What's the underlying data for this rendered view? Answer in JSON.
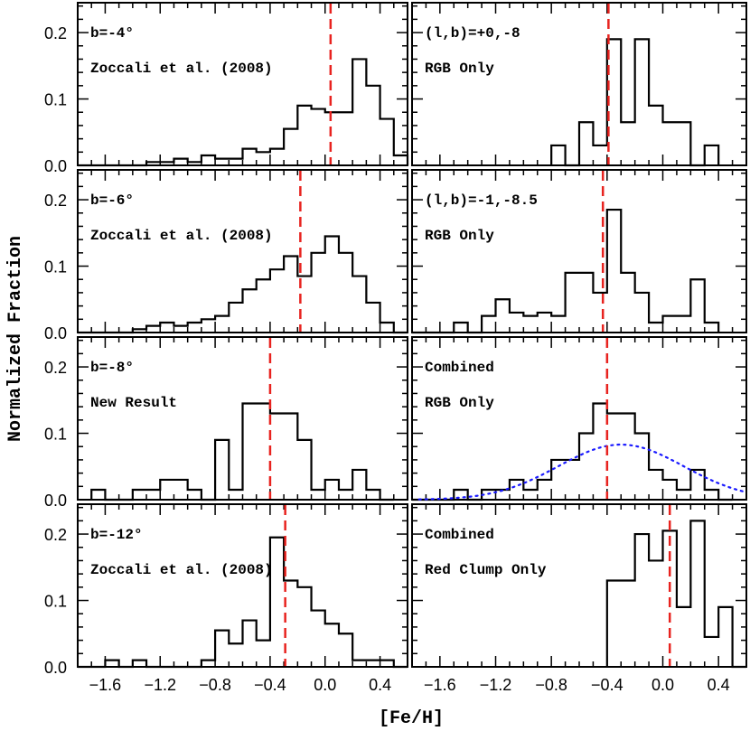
{
  "figure": {
    "ylabel": "Normalized Fraction",
    "xlabel": "[Fe/H]",
    "x_ticks": [
      "-1.6",
      "-1.2",
      "-0.8",
      "-0.4",
      "0.0",
      "0.4"
    ],
    "y_ticks": [
      "0.0",
      "0.1",
      "0.2"
    ],
    "hist_color": "#000000",
    "marker_color": "#e8231f",
    "gauss_color": "#1a1aff"
  },
  "chart_data": [
    {
      "type": "histogram",
      "panel": "row1-left",
      "label1": "b=-4°",
      "label2": "Zoccali et al. (2008)",
      "bin_width": 0.1,
      "x": [
        -1.8,
        -1.7,
        -1.6,
        -1.5,
        -1.4,
        -1.3,
        -1.2,
        -1.1,
        -1.0,
        -0.9,
        -0.8,
        -0.7,
        -0.6,
        -0.5,
        -0.4,
        -0.3,
        -0.2,
        -0.1,
        0.0,
        0.1,
        0.2,
        0.3,
        0.4,
        0.5
      ],
      "values": [
        0.0,
        0.0,
        0.0,
        0.0,
        0.0,
        0.005,
        0.005,
        0.01,
        0.005,
        0.015,
        0.01,
        0.01,
        0.025,
        0.02,
        0.025,
        0.055,
        0.09,
        0.085,
        0.08,
        0.08,
        0.16,
        0.12,
        0.07,
        0.015
      ],
      "marker_x": 0.04,
      "xlim": [
        -1.8,
        0.6
      ],
      "ylim": [
        0.0,
        0.245
      ]
    },
    {
      "type": "histogram",
      "panel": "row1-right",
      "label1": "(l,b)=+0,-8",
      "label2": "RGB Only",
      "bin_width": 0.1,
      "x": [
        -0.8,
        -0.7,
        -0.6,
        -0.5,
        -0.4,
        -0.3,
        -0.2,
        -0.1,
        0.0,
        0.1,
        0.2,
        0.3
      ],
      "values": [
        0.03,
        0.0,
        0.065,
        0.03,
        0.19,
        0.065,
        0.19,
        0.09,
        0.065,
        0.065,
        0.0,
        0.03
      ],
      "marker_x": -0.39,
      "xlim": [
        -1.8,
        0.6
      ],
      "ylim": [
        0.0,
        0.245
      ]
    },
    {
      "type": "histogram",
      "panel": "row2-left",
      "label1": "b=-6°",
      "label2": "Zoccali et al. (2008)",
      "bin_width": 0.1,
      "x": [
        -1.8,
        -1.7,
        -1.6,
        -1.5,
        -1.4,
        -1.3,
        -1.2,
        -1.1,
        -1.0,
        -0.9,
        -0.8,
        -0.7,
        -0.6,
        -0.5,
        -0.4,
        -0.3,
        -0.2,
        -0.1,
        0.0,
        0.1,
        0.2,
        0.3,
        0.4,
        0.5
      ],
      "values": [
        0.0,
        0.0,
        0.0,
        0.0,
        0.005,
        0.01,
        0.015,
        0.01,
        0.015,
        0.02,
        0.025,
        0.045,
        0.065,
        0.08,
        0.095,
        0.115,
        0.085,
        0.12,
        0.145,
        0.12,
        0.085,
        0.045,
        0.015,
        0.0
      ],
      "marker_x": -0.18,
      "xlim": [
        -1.8,
        0.6
      ],
      "ylim": [
        0.0,
        0.245
      ]
    },
    {
      "type": "histogram",
      "panel": "row2-right",
      "label1": "(l,b)=-1,-8.5",
      "label2": "RGB Only",
      "bin_width": 0.1,
      "x": [
        -1.8,
        -1.7,
        -1.6,
        -1.5,
        -1.4,
        -1.3,
        -1.2,
        -1.1,
        -1.0,
        -0.9,
        -0.8,
        -0.7,
        -0.6,
        -0.5,
        -0.4,
        -0.3,
        -0.2,
        -0.1,
        0.0,
        0.1,
        0.2,
        0.3
      ],
      "values": [
        0.0,
        0.0,
        0.0,
        0.015,
        0.0,
        0.025,
        0.05,
        0.03,
        0.025,
        0.03,
        0.025,
        0.09,
        0.09,
        0.06,
        0.185,
        0.09,
        0.06,
        0.015,
        0.025,
        0.025,
        0.08,
        0.015
      ],
      "marker_x": -0.43,
      "xlim": [
        -1.8,
        0.6
      ],
      "ylim": [
        0.0,
        0.245
      ]
    },
    {
      "type": "histogram",
      "panel": "row3-left",
      "label1": "b=-8°",
      "label2": "New Result",
      "bin_width": 0.1,
      "x": [
        -1.7,
        -1.6,
        -1.5,
        -1.4,
        -1.3,
        -1.2,
        -1.1,
        -1.0,
        -0.9,
        -0.8,
        -0.7,
        -0.6,
        -0.5,
        -0.4,
        -0.3,
        -0.2,
        -0.1,
        0.0,
        0.1,
        0.2,
        0.3,
        0.4
      ],
      "values": [
        0.015,
        0.0,
        0.0,
        0.015,
        0.015,
        0.03,
        0.03,
        0.015,
        0.0,
        0.09,
        0.015,
        0.145,
        0.145,
        0.13,
        0.13,
        0.09,
        0.015,
        0.03,
        0.015,
        0.045,
        0.015,
        0.0
      ],
      "marker_x": -0.4,
      "xlim": [
        -1.8,
        0.6
      ],
      "ylim": [
        0.0,
        0.245
      ]
    },
    {
      "type": "histogram",
      "panel": "row3-right",
      "label1": "Combined",
      "label2": "RGB Only",
      "bin_width": 0.1,
      "x": [
        -1.8,
        -1.7,
        -1.6,
        -1.5,
        -1.4,
        -1.3,
        -1.2,
        -1.1,
        -1.0,
        -0.9,
        -0.8,
        -0.7,
        -0.6,
        -0.5,
        -0.4,
        -0.3,
        -0.2,
        -0.1,
        0.0,
        0.1,
        0.2,
        0.3,
        0.4
      ],
      "values": [
        0.0,
        0.0,
        0.0,
        0.015,
        0.0,
        0.015,
        0.015,
        0.03,
        0.015,
        0.03,
        0.06,
        0.06,
        0.1,
        0.145,
        0.13,
        0.13,
        0.1,
        0.045,
        0.03,
        0.015,
        0.045,
        0.015,
        0.0
      ],
      "marker_x": -0.4,
      "gaussian": {
        "mean": -0.3,
        "sigma": 0.45,
        "peak": 0.083
      },
      "xlim": [
        -1.8,
        0.6
      ],
      "ylim": [
        0.0,
        0.245
      ]
    },
    {
      "type": "histogram",
      "panel": "row4-left",
      "label1": "b=-12°",
      "label2": "Zoccali et al. (2008)",
      "bin_width": 0.1,
      "x": [
        -1.8,
        -1.7,
        -1.6,
        -1.5,
        -1.4,
        -1.3,
        -1.2,
        -1.1,
        -1.0,
        -0.9,
        -0.8,
        -0.7,
        -0.6,
        -0.5,
        -0.4,
        -0.3,
        -0.2,
        -0.1,
        0.0,
        0.1,
        0.2,
        0.3,
        0.4,
        0.5
      ],
      "values": [
        0.0,
        0.0,
        0.01,
        0.0,
        0.01,
        0.0,
        0.0,
        0.0,
        0.0,
        0.01,
        0.055,
        0.035,
        0.07,
        0.04,
        0.195,
        0.13,
        0.12,
        0.085,
        0.065,
        0.05,
        0.01,
        0.01,
        0.01,
        0.0
      ],
      "marker_x": -0.29,
      "xlim": [
        -1.8,
        0.6
      ],
      "ylim": [
        0.0,
        0.245
      ]
    },
    {
      "type": "histogram",
      "panel": "row4-right",
      "label1": "Combined",
      "label2": "Red Clump Only",
      "bin_width": 0.1,
      "x": [
        -0.4,
        -0.3,
        -0.2,
        -0.1,
        0.0,
        0.1,
        0.2,
        0.3,
        0.4,
        0.5
      ],
      "values": [
        0.13,
        0.13,
        0.2,
        0.16,
        0.205,
        0.09,
        0.22,
        0.045,
        0.09,
        0.0
      ],
      "marker_x": 0.05,
      "xlim": [
        -1.8,
        0.6
      ],
      "ylim": [
        0.0,
        0.245
      ]
    }
  ]
}
